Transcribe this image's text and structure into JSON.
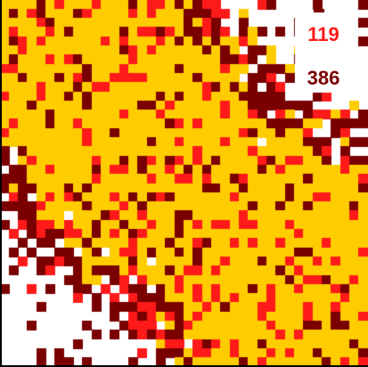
{
  "board": {
    "rows": 40,
    "cols": 40,
    "colors": {
      "background": "#ffffff",
      "yellow": "#ffcc00",
      "red": "#ff1a1a",
      "maroon": "#7a0000"
    }
  },
  "hud": {
    "red_count": "119",
    "dark_count": "386",
    "red_color": "#ff1a1a",
    "dark_color": "#7a0000"
  }
}
